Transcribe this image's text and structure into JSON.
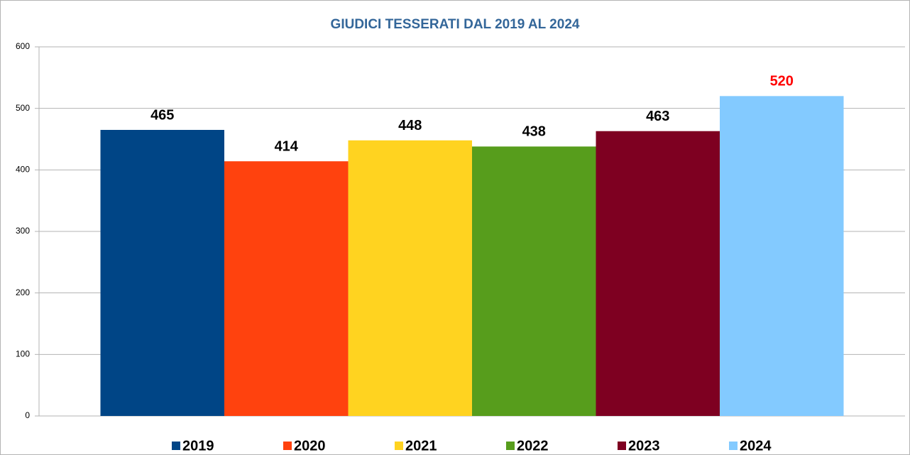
{
  "chart_data": {
    "type": "bar",
    "title": "GIUDICI TESSERATI DAL 2019 AL 2024",
    "categories": [
      null
    ],
    "series": [
      {
        "name": "2019",
        "color": "#004586",
        "label_color": "#000000",
        "values": [
          465
        ]
      },
      {
        "name": "2020",
        "color": "#ff420e",
        "label_color": "#000000",
        "values": [
          414
        ]
      },
      {
        "name": "2021",
        "color": "#ffd320",
        "label_color": "#000000",
        "values": [
          448
        ]
      },
      {
        "name": "2022",
        "color": "#579d1c",
        "label_color": "#000000",
        "values": [
          438
        ]
      },
      {
        "name": "2023",
        "color": "#7e0021",
        "label_color": "#000000",
        "values": [
          463
        ]
      },
      {
        "name": "2024",
        "color": "#83caff",
        "label_color": "#ff0000",
        "values": [
          520
        ]
      }
    ],
    "ylim": [
      0,
      600
    ],
    "yticks": [
      0,
      100,
      200,
      300,
      400,
      500,
      600
    ],
    "grid": true,
    "legend": "bottom"
  }
}
